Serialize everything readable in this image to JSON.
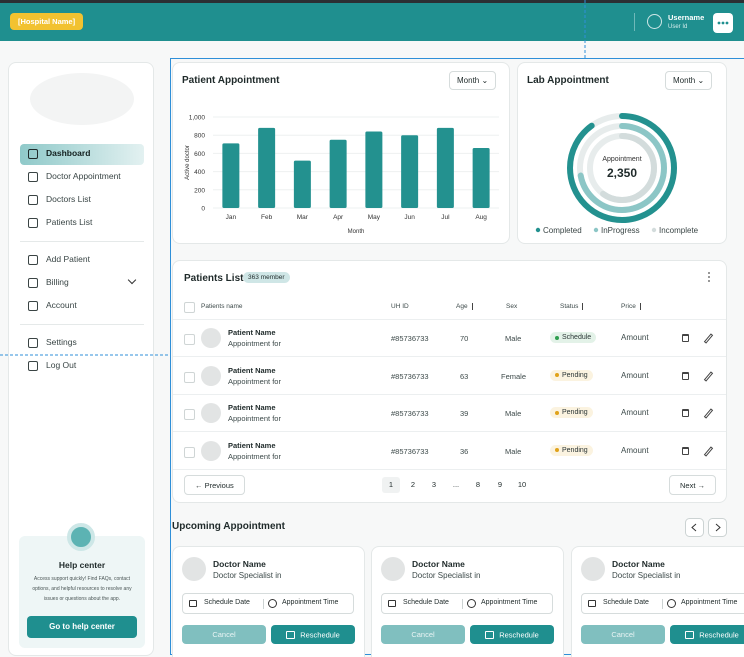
{
  "header": {
    "hospital_name": "[Hospital Name]",
    "username": "Username",
    "user_id": "User Id"
  },
  "sidebar": {
    "nav_main": [
      "Dashboard",
      "Doctor Appointment",
      "Doctors List",
      "Patients List"
    ],
    "nav_manage": [
      "Add Patient",
      "Billing",
      "Account"
    ],
    "nav_system": [
      "Settings",
      "Log Out"
    ],
    "help": {
      "title": "Help center",
      "text": "Access support quickly! Find FAQs, contact options, and helpful resources to resolve any issues or questions about the app.",
      "button": "Go to help center"
    }
  },
  "chart_data": [
    {
      "type": "bar",
      "title": "Patient Appointment",
      "filter": "Month",
      "y_label": "Active doctor",
      "x_label": "Month",
      "categories": [
        "Jan",
        "Feb",
        "Mar",
        "Apr",
        "May",
        "Jun",
        "Jul",
        "Aug"
      ],
      "values": [
        710,
        880,
        520,
        750,
        840,
        800,
        880,
        660
      ],
      "color": "#23918f",
      "ylim": [
        0,
        1000
      ],
      "yticks": [
        0,
        200,
        400,
        600,
        800,
        {
          "value": 1000,
          "label": "1,000"
        }
      ],
      "grid": true
    },
    {
      "type": "donut",
      "title": "Lab Appointment",
      "filter": "Month",
      "center_label": "Appointment",
      "center_value": "2,350",
      "ylim": [
        0,
        100
      ],
      "series": [
        {
          "name": "Completed",
          "color": "#23918f",
          "values": [
            90
          ]
        },
        {
          "name": "InProgress",
          "color": "#8cc6c6",
          "values": [
            72
          ]
        },
        {
          "name": "Incomplete",
          "color": "#d3dcdc",
          "values": [
            60
          ]
        }
      ]
    }
  ],
  "patients_table": {
    "title": "Patients List",
    "count": "363 member",
    "columns": [
      "Patients name",
      "UH ID",
      "Age",
      "Sex",
      "Status",
      "Price"
    ],
    "rows": [
      {
        "name": "Patient Name",
        "subtitle": "Appointment for",
        "uh_id": "#85736733",
        "age": 70,
        "sex": "Male",
        "status": "Schedule",
        "status_color": "#2f9e4f",
        "price": "Amount"
      },
      {
        "name": "Patient Name",
        "subtitle": "Appointment for",
        "uh_id": "#85736733",
        "age": 63,
        "sex": "Female",
        "status": "Pending",
        "status_color": "#e0a21a",
        "price": "Amount"
      },
      {
        "name": "Patient Name",
        "subtitle": "Appointment for",
        "uh_id": "#85736733",
        "age": 39,
        "sex": "Male",
        "status": "Pending",
        "status_color": "#e0a21a",
        "price": "Amount"
      },
      {
        "name": "Patient Name",
        "subtitle": "Appointment for",
        "uh_id": "#85736733",
        "age": 36,
        "sex": "Male",
        "status": "Pending",
        "status_color": "#e0a21a",
        "price": "Amount"
      }
    ],
    "pagination": {
      "previous": "Previous",
      "pages": [
        1,
        2,
        3,
        "...",
        8,
        9,
        10
      ],
      "next": "Next"
    }
  },
  "upcoming": {
    "title": "Upcoming Appointment",
    "cards": [
      {
        "doctor": "Doctor Name",
        "specialty": "Doctor Specialist in",
        "date": "Schedule Date",
        "time": "Appointment Time",
        "cancel": "Cancel",
        "reschedule": "Reschedule"
      },
      {
        "doctor": "Doctor Name",
        "specialty": "Doctor Specialist in",
        "date": "Schedule Date",
        "time": "Appointment Time",
        "cancel": "Cancel",
        "reschedule": "Reschedule"
      },
      {
        "doctor": "Doctor Name",
        "specialty": "Doctor Specialist in",
        "date": "Schedule Date",
        "time": "Appointment Time",
        "cancel": "Cancel",
        "reschedule": "Reschedule"
      }
    ]
  }
}
